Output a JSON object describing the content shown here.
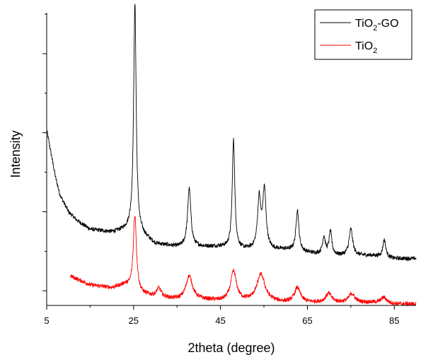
{
  "chart_data": {
    "type": "line",
    "xlabel": "2theta (degree)",
    "ylabel": "Intensity",
    "xlim": [
      5,
      90
    ],
    "ylim": [
      0,
      100
    ],
    "x_ticks": [
      5,
      25,
      45,
      65,
      85
    ],
    "y_ticks_show_labels": false,
    "grid": false,
    "legend_position": "top-right",
    "series": [
      {
        "name": "TiO2-GO",
        "legend_main": "TiO",
        "legend_sub": "2",
        "legend_tail": "-GO",
        "color": "#000000",
        "baseline": [
          [
            5,
            60
          ],
          [
            6,
            52
          ],
          [
            7,
            44
          ],
          [
            8,
            38
          ],
          [
            10,
            32
          ],
          [
            12,
            29
          ],
          [
            15,
            26
          ],
          [
            20,
            25
          ],
          [
            24,
            26
          ],
          [
            27,
            24
          ],
          [
            30,
            21
          ],
          [
            35,
            20
          ],
          [
            40,
            20
          ],
          [
            45,
            20
          ],
          [
            50,
            19
          ],
          [
            55,
            19
          ],
          [
            60,
            19
          ],
          [
            65,
            18
          ],
          [
            70,
            17
          ],
          [
            75,
            17
          ],
          [
            80,
            17
          ],
          [
            85,
            16
          ],
          [
            90,
            16
          ]
        ],
        "peaks": [
          {
            "x": 25.3,
            "height": 78,
            "width": 0.35
          },
          {
            "x": 37.8,
            "height": 20,
            "width": 0.45
          },
          {
            "x": 48.0,
            "height": 37,
            "width": 0.35
          },
          {
            "x": 53.9,
            "height": 17,
            "width": 0.45
          },
          {
            "x": 55.1,
            "height": 20,
            "width": 0.45
          },
          {
            "x": 62.7,
            "height": 14,
            "width": 0.4
          },
          {
            "x": 68.8,
            "height": 6,
            "width": 0.4
          },
          {
            "x": 70.3,
            "height": 8,
            "width": 0.4
          },
          {
            "x": 75.0,
            "height": 9,
            "width": 0.5
          },
          {
            "x": 82.7,
            "height": 6,
            "width": 0.4
          }
        ]
      },
      {
        "name": "TiO2",
        "legend_main": "TiO",
        "legend_sub": "2",
        "legend_tail": "",
        "color": "#ff0000",
        "x_start": 10.5,
        "baseline": [
          [
            10.5,
            10
          ],
          [
            15,
            7
          ],
          [
            20,
            6
          ],
          [
            23,
            7
          ],
          [
            26,
            4
          ],
          [
            30,
            3
          ],
          [
            35,
            2
          ],
          [
            40,
            2
          ],
          [
            45,
            1.5
          ],
          [
            50,
            1.5
          ],
          [
            55,
            1.5
          ],
          [
            60,
            1
          ],
          [
            65,
            1
          ],
          [
            70,
            1
          ],
          [
            75,
            1
          ],
          [
            80,
            1
          ],
          [
            85,
            0.5
          ],
          [
            90,
            0.5
          ]
        ],
        "peaks": [
          {
            "x": 25.3,
            "height": 26,
            "width": 0.45
          },
          {
            "x": 30.8,
            "height": 3,
            "width": 0.6
          },
          {
            "x": 37.8,
            "height": 8,
            "width": 0.9
          },
          {
            "x": 48.0,
            "height": 10,
            "width": 0.8
          },
          {
            "x": 54.3,
            "height": 9,
            "width": 1.1
          },
          {
            "x": 62.7,
            "height": 5,
            "width": 0.8
          },
          {
            "x": 69.9,
            "height": 3,
            "width": 0.8
          },
          {
            "x": 75.2,
            "height": 3,
            "width": 0.8
          },
          {
            "x": 82.6,
            "height": 2,
            "width": 0.8
          }
        ]
      }
    ]
  }
}
